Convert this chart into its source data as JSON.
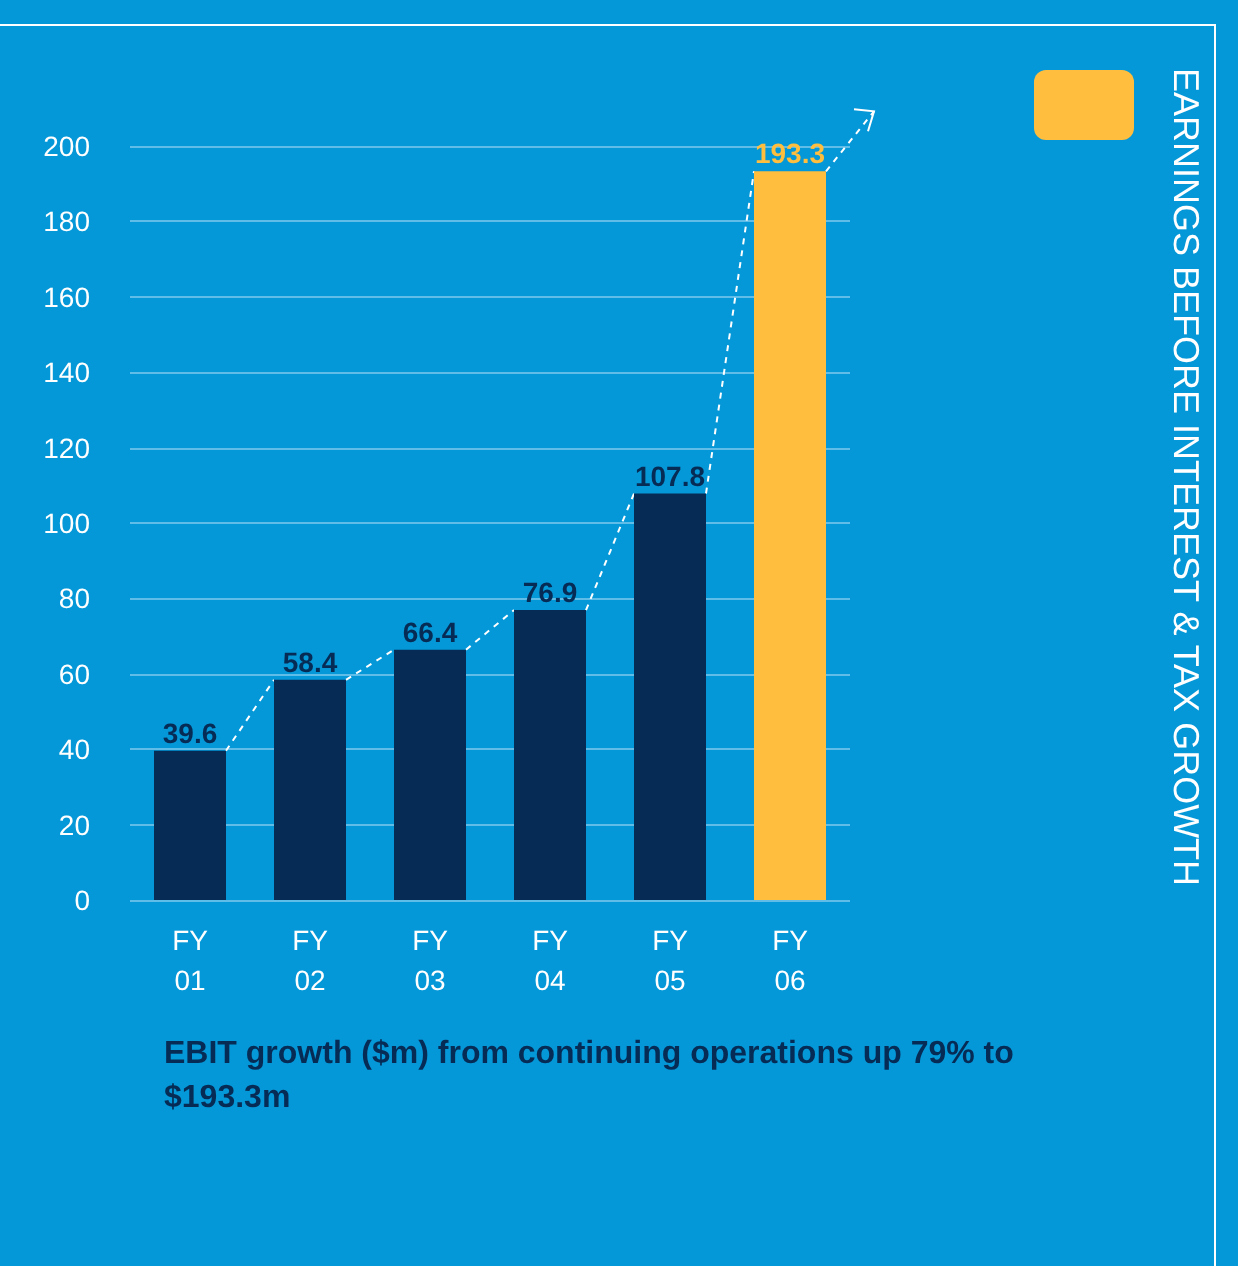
{
  "chart_data": {
    "type": "bar",
    "title": "EARNINGS BEFORE INTEREST & TAX GROWTH",
    "categories": [
      "FY\n01",
      "FY\n02",
      "FY\n03",
      "FY\n04",
      "FY\n05",
      "FY\n06"
    ],
    "values": [
      39.6,
      58.4,
      66.4,
      76.9,
      107.8,
      193.3
    ],
    "colors": [
      "#062b55",
      "#062b55",
      "#062b55",
      "#062b55",
      "#062b55",
      "#ffbe3d"
    ],
    "ylim": [
      0,
      200
    ],
    "yticks": [
      0,
      20,
      40,
      60,
      80,
      100,
      120,
      140,
      160,
      180,
      200
    ],
    "grid": "y",
    "data_labels": true,
    "annotations": [
      "EBIT growth ($m) from continuing operations up 79% to $193.3m"
    ]
  }
}
